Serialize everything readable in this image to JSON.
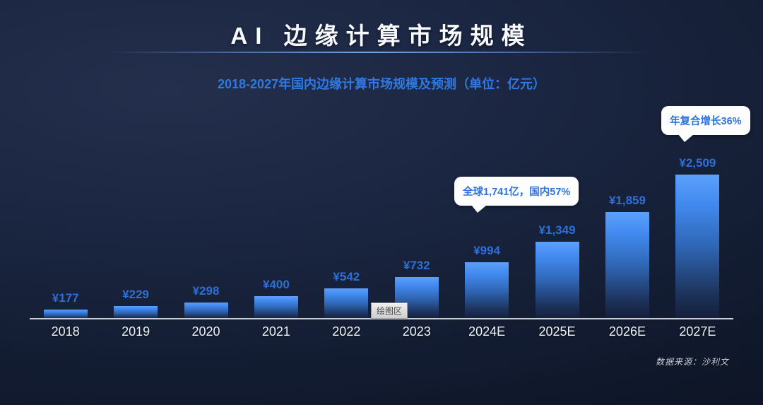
{
  "header": {
    "title": "AI 边缘计算市场规模",
    "subtitle": "2018-2027年国内边缘计算市场规模及预测（单位：亿元）"
  },
  "callouts": {
    "cagr": "年复合增长36%",
    "global_share": "全球1,741亿，国内57%"
  },
  "plot_tooltip": {
    "label": "绘图区"
  },
  "source": "数据来源：沙利文",
  "colors": {
    "background_dark": "#141E34",
    "accent_blue": "#2E7AE2",
    "bar_top": "#5CA0FB",
    "bar_bottom": "#141F38",
    "value_label": "#2E6FD6",
    "axis_line": "#C9CED8",
    "axis_label": "#EEF1F5",
    "bubble_bg": "#FDFDFD"
  },
  "chart_data": {
    "type": "bar",
    "title": "AI 边缘计算市场规模",
    "subtitle": "2018-2027年国内边缘计算市场规模及预测（单位：亿元）",
    "unit": "亿元",
    "currency_prefix": "¥",
    "categories": [
      "2018",
      "2019",
      "2020",
      "2021",
      "2022",
      "2023",
      "2024E",
      "2025E",
      "2026E",
      "2027E"
    ],
    "values": [
      177,
      229,
      298,
      400,
      542,
      732,
      994,
      1349,
      1859,
      2509
    ],
    "value_labels": [
      "¥177",
      "¥229",
      "¥298",
      "¥400",
      "¥542",
      "¥732",
      "¥994",
      "¥1,349",
      "¥1,859",
      "¥2,509"
    ],
    "ylim": [
      0,
      2700
    ],
    "grid": false,
    "legend": "none",
    "annotations": [
      "年复合增长36%",
      "全球1,741亿，国内57%"
    ]
  }
}
